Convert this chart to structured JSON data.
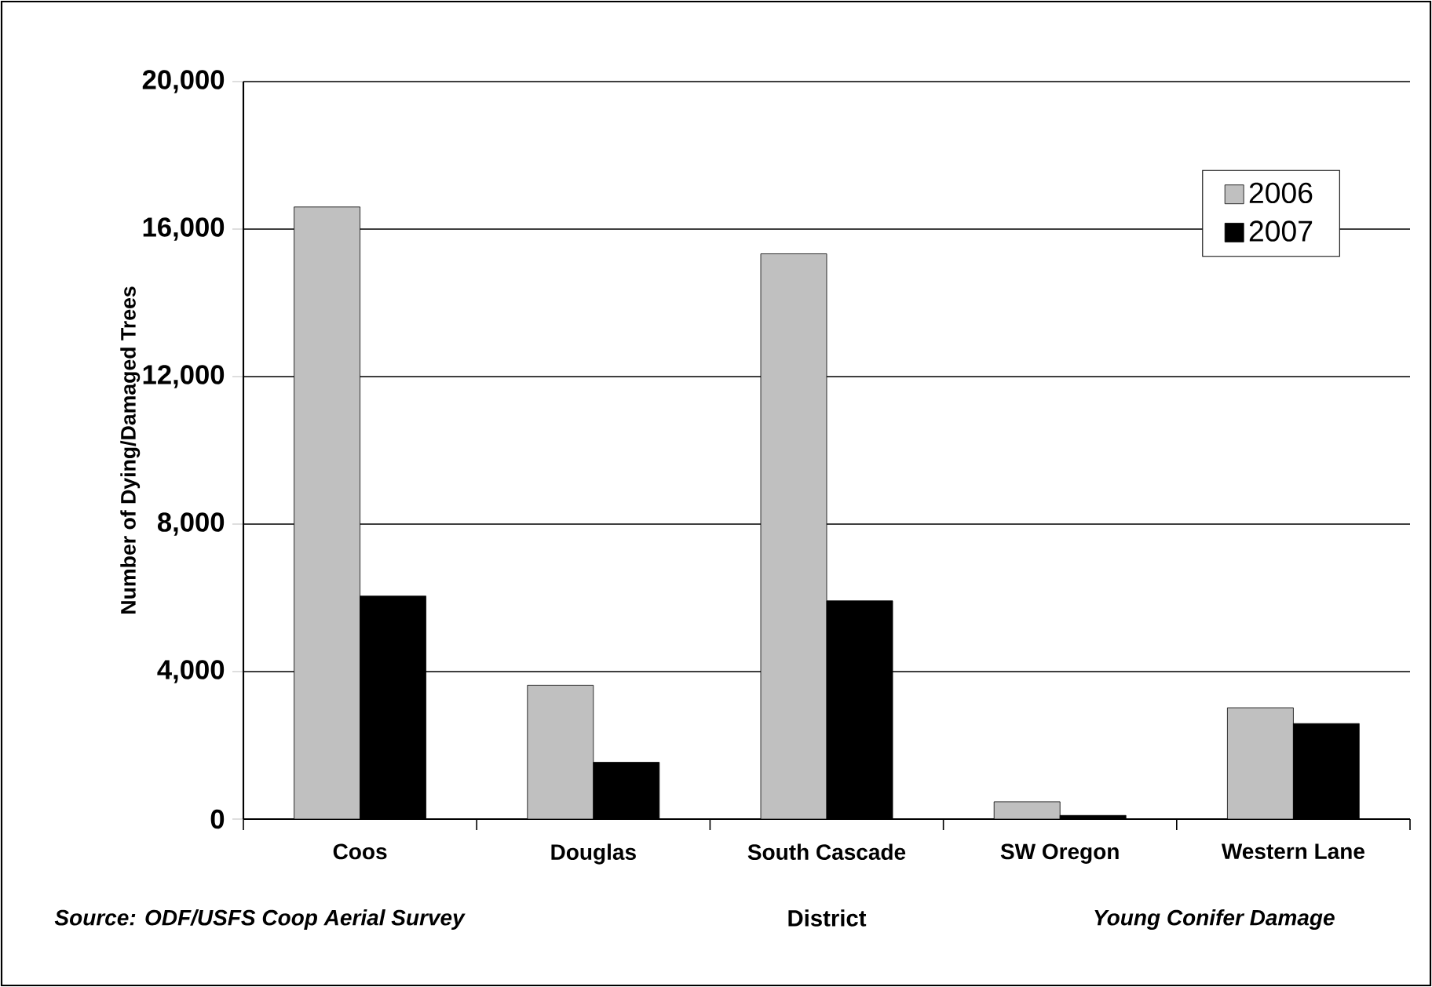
{
  "chart_data": {
    "type": "bar",
    "categories": [
      "Coos",
      "Douglas",
      "South Cascade",
      "SW Oregon",
      "Western Lane"
    ],
    "series": [
      {
        "name": "2006",
        "color": "#c0c0c0",
        "values": [
          16600,
          3630,
          15330,
          470,
          3020
        ]
      },
      {
        "name": "2007",
        "color": "#000000",
        "values": [
          6050,
          1540,
          5920,
          100,
          2590
        ]
      }
    ],
    "xlabel": "District",
    "ylabel": "Number of Dying/Damaged Trees",
    "ylim": [
      0,
      20000
    ],
    "yticks": [
      0,
      {
        "value": 4000,
        "label": "4,000"
      },
      {
        "value": 8000,
        "label": "8,000"
      },
      {
        "value": 12000,
        "label": "12,000"
      },
      {
        "value": 16000,
        "label": "16,000"
      },
      {
        "value": 20000,
        "label": "20,000"
      }
    ],
    "grid": "y",
    "legend": "top right",
    "annotations": [
      "Source: ODF/USFS Coop Aerial Survey",
      "Young Conifer Damage"
    ]
  }
}
